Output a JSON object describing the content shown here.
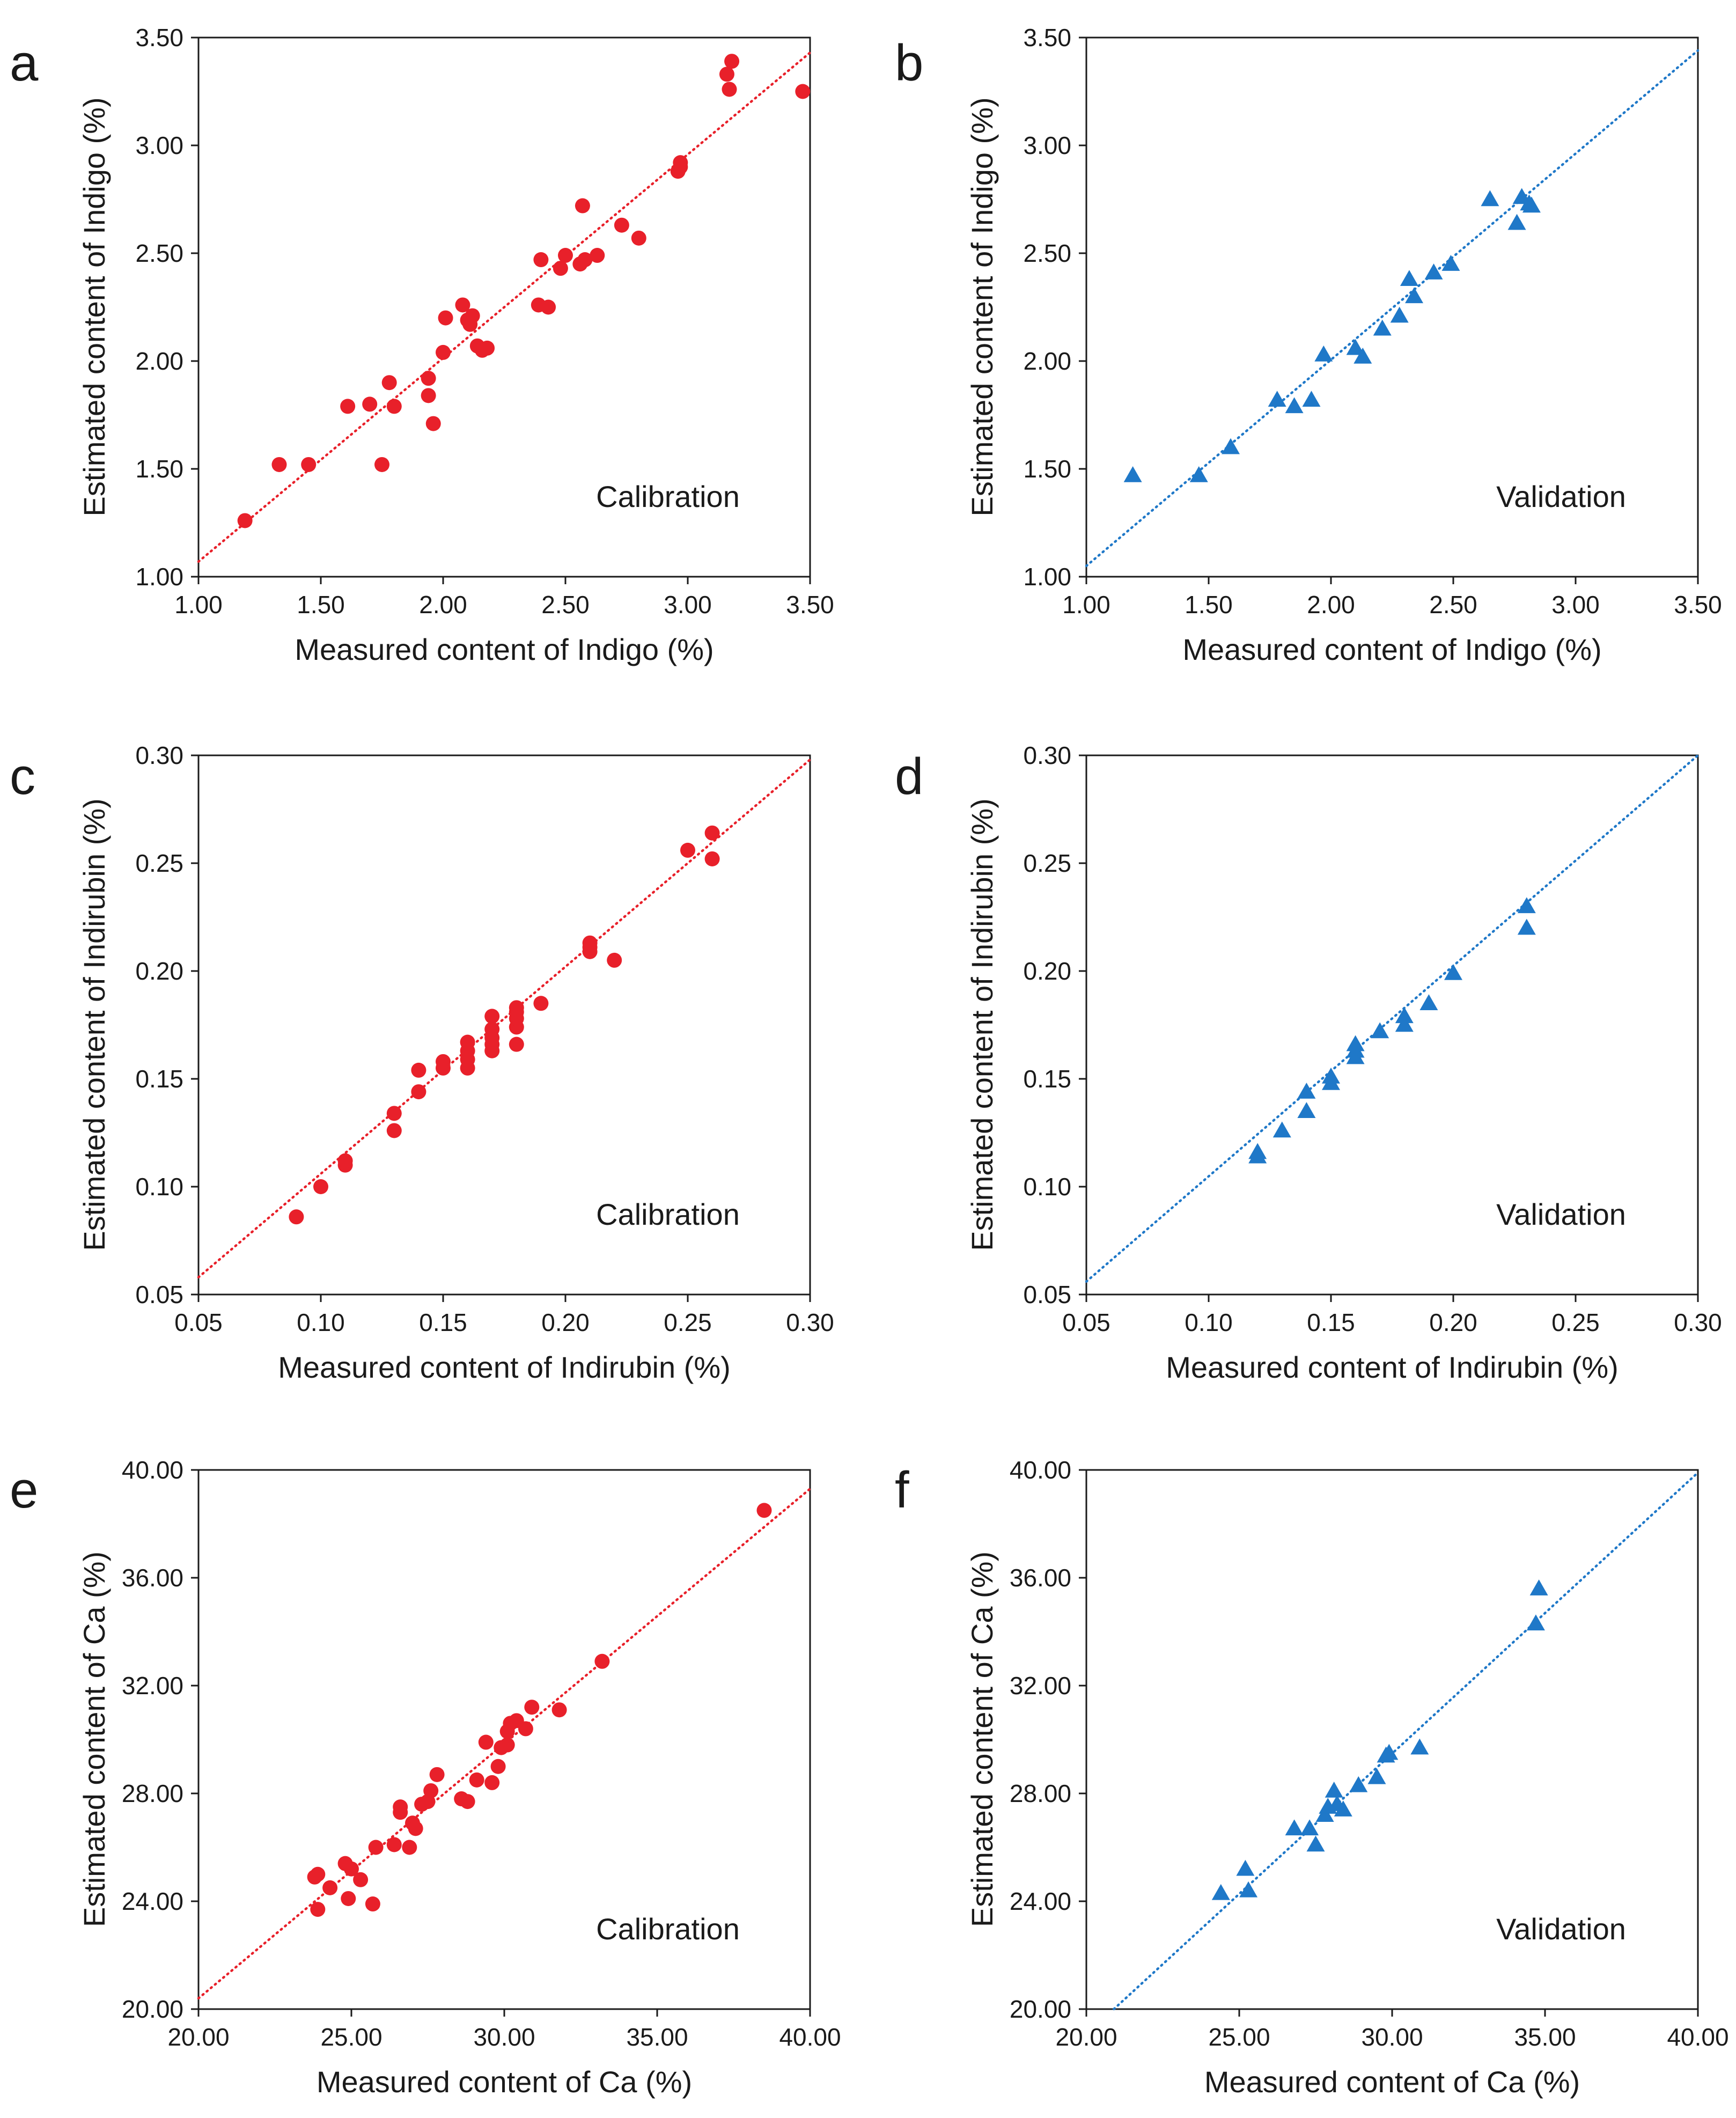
{
  "chart_data": [
    {
      "type": "scatter",
      "panel": "a",
      "annotation": "Calibration",
      "xlabel": "Measured content of Indigo (%)",
      "ylabel": "Estimated content of Indigo (%)",
      "xlim": [
        1.0,
        3.5
      ],
      "ylim": [
        1.0,
        3.5
      ],
      "xticks": [
        "1.00",
        "1.50",
        "2.00",
        "2.50",
        "3.00",
        "3.50"
      ],
      "yticks": [
        "1.00",
        "1.50",
        "2.00",
        "2.50",
        "3.00",
        "3.50"
      ],
      "marker": "circle",
      "color": "#e8202a",
      "line": [
        1.0,
        1.07,
        3.5,
        3.43
      ],
      "points": [
        [
          1.19,
          1.26
        ],
        [
          1.33,
          1.52
        ],
        [
          1.45,
          1.52
        ],
        [
          1.61,
          1.79
        ],
        [
          1.7,
          1.8
        ],
        [
          1.75,
          1.52
        ],
        [
          1.78,
          1.9
        ],
        [
          1.8,
          1.79
        ],
        [
          1.94,
          1.84
        ],
        [
          1.94,
          1.92
        ],
        [
          1.96,
          1.71
        ],
        [
          2.0,
          2.04
        ],
        [
          2.01,
          2.2
        ],
        [
          2.08,
          2.26
        ],
        [
          2.1,
          2.19
        ],
        [
          2.11,
          2.17
        ],
        [
          2.12,
          2.21
        ],
        [
          2.14,
          2.07
        ],
        [
          2.16,
          2.05
        ],
        [
          2.18,
          2.06
        ],
        [
          2.39,
          2.26
        ],
        [
          2.4,
          2.47
        ],
        [
          2.43,
          2.25
        ],
        [
          2.48,
          2.43
        ],
        [
          2.5,
          2.49
        ],
        [
          2.56,
          2.45
        ],
        [
          2.57,
          2.72
        ],
        [
          2.58,
          2.47
        ],
        [
          2.63,
          2.49
        ],
        [
          2.73,
          2.63
        ],
        [
          2.8,
          2.57
        ],
        [
          2.96,
          2.88
        ],
        [
          2.97,
          2.9
        ],
        [
          2.97,
          2.92
        ],
        [
          3.16,
          3.33
        ],
        [
          3.17,
          3.26
        ],
        [
          3.18,
          3.39
        ],
        [
          3.47,
          3.25
        ]
      ]
    },
    {
      "type": "scatter",
      "panel": "b",
      "annotation": "Validation",
      "xlabel": "Measured content of Indigo (%)",
      "ylabel": "Estimated content of Indigo (%)",
      "xlim": [
        1.0,
        3.5
      ],
      "ylim": [
        1.0,
        3.5
      ],
      "xticks": [
        "1.00",
        "1.50",
        "2.00",
        "2.50",
        "3.00",
        "3.50"
      ],
      "yticks": [
        "1.00",
        "1.50",
        "2.00",
        "2.50",
        "3.00",
        "3.50"
      ],
      "marker": "triangle",
      "color": "#1f78c8",
      "line": [
        1.0,
        1.05,
        3.5,
        3.44
      ],
      "points": [
        [
          1.19,
          1.47
        ],
        [
          1.46,
          1.47
        ],
        [
          1.59,
          1.6
        ],
        [
          1.78,
          1.82
        ],
        [
          1.85,
          1.79
        ],
        [
          1.92,
          1.82
        ],
        [
          1.97,
          2.03
        ],
        [
          2.1,
          2.06
        ],
        [
          2.13,
          2.02
        ],
        [
          2.21,
          2.15
        ],
        [
          2.28,
          2.21
        ],
        [
          2.32,
          2.38
        ],
        [
          2.34,
          2.3
        ],
        [
          2.42,
          2.41
        ],
        [
          2.49,
          2.45
        ],
        [
          2.65,
          2.75
        ],
        [
          2.76,
          2.64
        ],
        [
          2.78,
          2.76
        ],
        [
          2.81,
          2.73
        ],
        [
          2.82,
          2.72
        ]
      ]
    },
    {
      "type": "scatter",
      "panel": "c",
      "annotation": "Calibration",
      "xlabel": "Measured content of Indirubin (%)",
      "ylabel": "Estimated content of Indirubin (%)",
      "xlim": [
        0.05,
        0.3
      ],
      "ylim": [
        0.05,
        0.3
      ],
      "xticks": [
        "0.05",
        "0.10",
        "0.15",
        "0.20",
        "0.25",
        "0.30"
      ],
      "yticks": [
        "0.05",
        "0.10",
        "0.15",
        "0.20",
        "0.25",
        "0.30"
      ],
      "marker": "circle",
      "color": "#e8202a",
      "line": [
        0.05,
        0.058,
        0.3,
        0.298
      ],
      "points": [
        [
          0.09,
          0.086
        ],
        [
          0.1,
          0.1
        ],
        [
          0.11,
          0.11
        ],
        [
          0.11,
          0.112
        ],
        [
          0.13,
          0.126
        ],
        [
          0.13,
          0.134
        ],
        [
          0.14,
          0.144
        ],
        [
          0.14,
          0.154
        ],
        [
          0.15,
          0.155
        ],
        [
          0.15,
          0.158
        ],
        [
          0.16,
          0.155
        ],
        [
          0.16,
          0.159
        ],
        [
          0.16,
          0.163
        ],
        [
          0.16,
          0.167
        ],
        [
          0.17,
          0.163
        ],
        [
          0.17,
          0.166
        ],
        [
          0.17,
          0.169
        ],
        [
          0.17,
          0.173
        ],
        [
          0.17,
          0.179
        ],
        [
          0.18,
          0.166
        ],
        [
          0.18,
          0.174
        ],
        [
          0.18,
          0.178
        ],
        [
          0.18,
          0.181
        ],
        [
          0.18,
          0.183
        ],
        [
          0.19,
          0.185
        ],
        [
          0.21,
          0.209
        ],
        [
          0.21,
          0.211
        ],
        [
          0.21,
          0.213
        ],
        [
          0.22,
          0.205
        ],
        [
          0.25,
          0.256
        ],
        [
          0.26,
          0.252
        ],
        [
          0.26,
          0.264
        ]
      ]
    },
    {
      "type": "scatter",
      "panel": "d",
      "annotation": "Validation",
      "xlabel": "Measured content of Indirubin (%)",
      "ylabel": "Estimated content of Indirubin (%)",
      "xlim": [
        0.05,
        0.3
      ],
      "ylim": [
        0.05,
        0.3
      ],
      "xticks": [
        "0.05",
        "0.10",
        "0.15",
        "0.20",
        "0.25",
        "0.30"
      ],
      "yticks": [
        "0.05",
        "0.10",
        "0.15",
        "0.20",
        "0.25",
        "0.30"
      ],
      "marker": "triangle",
      "color": "#1f78c8",
      "line": [
        0.05,
        0.056,
        0.3,
        0.3
      ],
      "points": [
        [
          0.12,
          0.114
        ],
        [
          0.12,
          0.116
        ],
        [
          0.13,
          0.126
        ],
        [
          0.14,
          0.135
        ],
        [
          0.14,
          0.144
        ],
        [
          0.15,
          0.148
        ],
        [
          0.15,
          0.151
        ],
        [
          0.16,
          0.16
        ],
        [
          0.16,
          0.163
        ],
        [
          0.16,
          0.166
        ],
        [
          0.17,
          0.172
        ],
        [
          0.18,
          0.175
        ],
        [
          0.18,
          0.179
        ],
        [
          0.19,
          0.185
        ],
        [
          0.2,
          0.199
        ],
        [
          0.23,
          0.22
        ],
        [
          0.23,
          0.23
        ]
      ]
    },
    {
      "type": "scatter",
      "panel": "e",
      "annotation": "Calibration",
      "xlabel": "Measured content of Ca (%)",
      "ylabel": "Estimated content of Ca (%)",
      "xlim": [
        20,
        40
      ],
      "ylim": [
        20,
        40
      ],
      "xticks": [
        "20.00",
        "25.00",
        "30.00",
        "35.00",
        "40.00"
      ],
      "yticks": [
        "20.00",
        "24.00",
        "28.00",
        "32.00",
        "36.00",
        "40.00"
      ],
      "marker": "circle",
      "color": "#e8202a",
      "line": [
        20,
        20.4,
        40,
        39.3
      ],
      "points": [
        [
          23.8,
          24.9
        ],
        [
          23.9,
          25.0
        ],
        [
          23.9,
          23.7
        ],
        [
          24.3,
          24.5
        ],
        [
          24.8,
          25.4
        ],
        [
          24.9,
          24.1
        ],
        [
          25.0,
          25.2
        ],
        [
          25.3,
          24.8
        ],
        [
          25.7,
          23.9
        ],
        [
          25.8,
          26.0
        ],
        [
          26.4,
          26.1
        ],
        [
          26.6,
          27.3
        ],
        [
          26.6,
          27.5
        ],
        [
          26.9,
          26.0
        ],
        [
          27.0,
          26.9
        ],
        [
          27.1,
          26.7
        ],
        [
          27.3,
          27.6
        ],
        [
          27.5,
          27.7
        ],
        [
          27.6,
          28.1
        ],
        [
          27.8,
          28.7
        ],
        [
          28.6,
          27.8
        ],
        [
          28.8,
          27.7
        ],
        [
          29.1,
          28.5
        ],
        [
          29.4,
          29.9
        ],
        [
          29.6,
          28.4
        ],
        [
          29.8,
          29.0
        ],
        [
          29.9,
          29.7
        ],
        [
          30.1,
          29.8
        ],
        [
          30.1,
          30.3
        ],
        [
          30.2,
          30.6
        ],
        [
          30.4,
          30.7
        ],
        [
          30.7,
          30.4
        ],
        [
          30.9,
          31.2
        ],
        [
          31.8,
          31.1
        ],
        [
          33.2,
          32.9
        ],
        [
          38.5,
          38.5
        ]
      ]
    },
    {
      "type": "scatter",
      "panel": "f",
      "annotation": "Validation",
      "xlabel": "Measured content of Ca (%)",
      "ylabel": "Estimated content of Ca (%)",
      "xlim": [
        20,
        40
      ],
      "ylim": [
        20,
        40
      ],
      "xticks": [
        "20.00",
        "25.00",
        "30.00",
        "35.00",
        "40.00"
      ],
      "yticks": [
        "20.00",
        "24.00",
        "28.00",
        "32.00",
        "36.00",
        "40.00"
      ],
      "marker": "triangle",
      "color": "#1f78c8",
      "line": [
        20.9,
        20,
        40,
        39.9
      ],
      "points": [
        [
          24.4,
          24.3
        ],
        [
          25.2,
          25.2
        ],
        [
          25.3,
          24.4
        ],
        [
          26.8,
          26.7
        ],
        [
          27.3,
          26.7
        ],
        [
          27.5,
          26.1
        ],
        [
          27.8,
          27.2
        ],
        [
          27.9,
          27.5
        ],
        [
          28.1,
          28.1
        ],
        [
          28.2,
          27.6
        ],
        [
          28.4,
          27.4
        ],
        [
          28.9,
          28.3
        ],
        [
          29.5,
          28.6
        ],
        [
          29.8,
          29.4
        ],
        [
          29.9,
          29.5
        ],
        [
          30.9,
          29.7
        ],
        [
          34.7,
          34.3
        ],
        [
          34.8,
          35.6
        ]
      ]
    }
  ]
}
